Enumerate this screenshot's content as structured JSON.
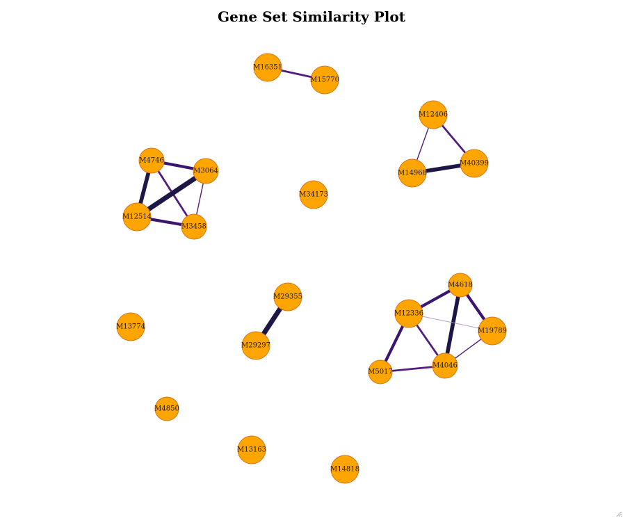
{
  "title": "Gene Set Similarity Plot",
  "colors": {
    "node_fill": "#ffa500",
    "node_stroke": "#d9761a",
    "edge_strong": "#1e1645",
    "edge_medium": "#3b1670",
    "edge_normal": "#521c7c",
    "edge_weak": "#b89cc7"
  },
  "nodes": [
    {
      "id": "M16351"
    },
    {
      "id": "M15770"
    },
    {
      "id": "M12406"
    },
    {
      "id": "M14968"
    },
    {
      "id": "M40399"
    },
    {
      "id": "M4746"
    },
    {
      "id": "M3064"
    },
    {
      "id": "M12514"
    },
    {
      "id": "M3458"
    },
    {
      "id": "M34173"
    },
    {
      "id": "M29355"
    },
    {
      "id": "M29297"
    },
    {
      "id": "M13774"
    },
    {
      "id": "M4618"
    },
    {
      "id": "M12336"
    },
    {
      "id": "M19789"
    },
    {
      "id": "M5017"
    },
    {
      "id": "M4046"
    },
    {
      "id": "M4850"
    },
    {
      "id": "M13163"
    },
    {
      "id": "M14818"
    }
  ],
  "edges": [
    {
      "source": "M16351",
      "target": "M15770",
      "weight": 2
    },
    {
      "source": "M12406",
      "target": "M40399",
      "weight": 2
    },
    {
      "source": "M12406",
      "target": "M14968",
      "weight": 1
    },
    {
      "source": "M14968",
      "target": "M40399",
      "weight": 4
    },
    {
      "source": "M4746",
      "target": "M3064",
      "weight": 3
    },
    {
      "source": "M4746",
      "target": "M12514",
      "weight": 4
    },
    {
      "source": "M4746",
      "target": "M3458",
      "weight": 2
    },
    {
      "source": "M3064",
      "target": "M12514",
      "weight": 5
    },
    {
      "source": "M3064",
      "target": "M3458",
      "weight": 1
    },
    {
      "source": "M12514",
      "target": "M3458",
      "weight": 3
    },
    {
      "source": "M29355",
      "target": "M29297",
      "weight": 5
    },
    {
      "source": "M4618",
      "target": "M12336",
      "weight": 3
    },
    {
      "source": "M4618",
      "target": "M19789",
      "weight": 3
    },
    {
      "source": "M4618",
      "target": "M4046",
      "weight": 4
    },
    {
      "source": "M12336",
      "target": "M19789",
      "weight": 0.5
    },
    {
      "source": "M12336",
      "target": "M5017",
      "weight": 3
    },
    {
      "source": "M12336",
      "target": "M4046",
      "weight": 2
    },
    {
      "source": "M5017",
      "target": "M4046",
      "weight": 2
    },
    {
      "source": "M19789",
      "target": "M4046",
      "weight": 1
    }
  ]
}
